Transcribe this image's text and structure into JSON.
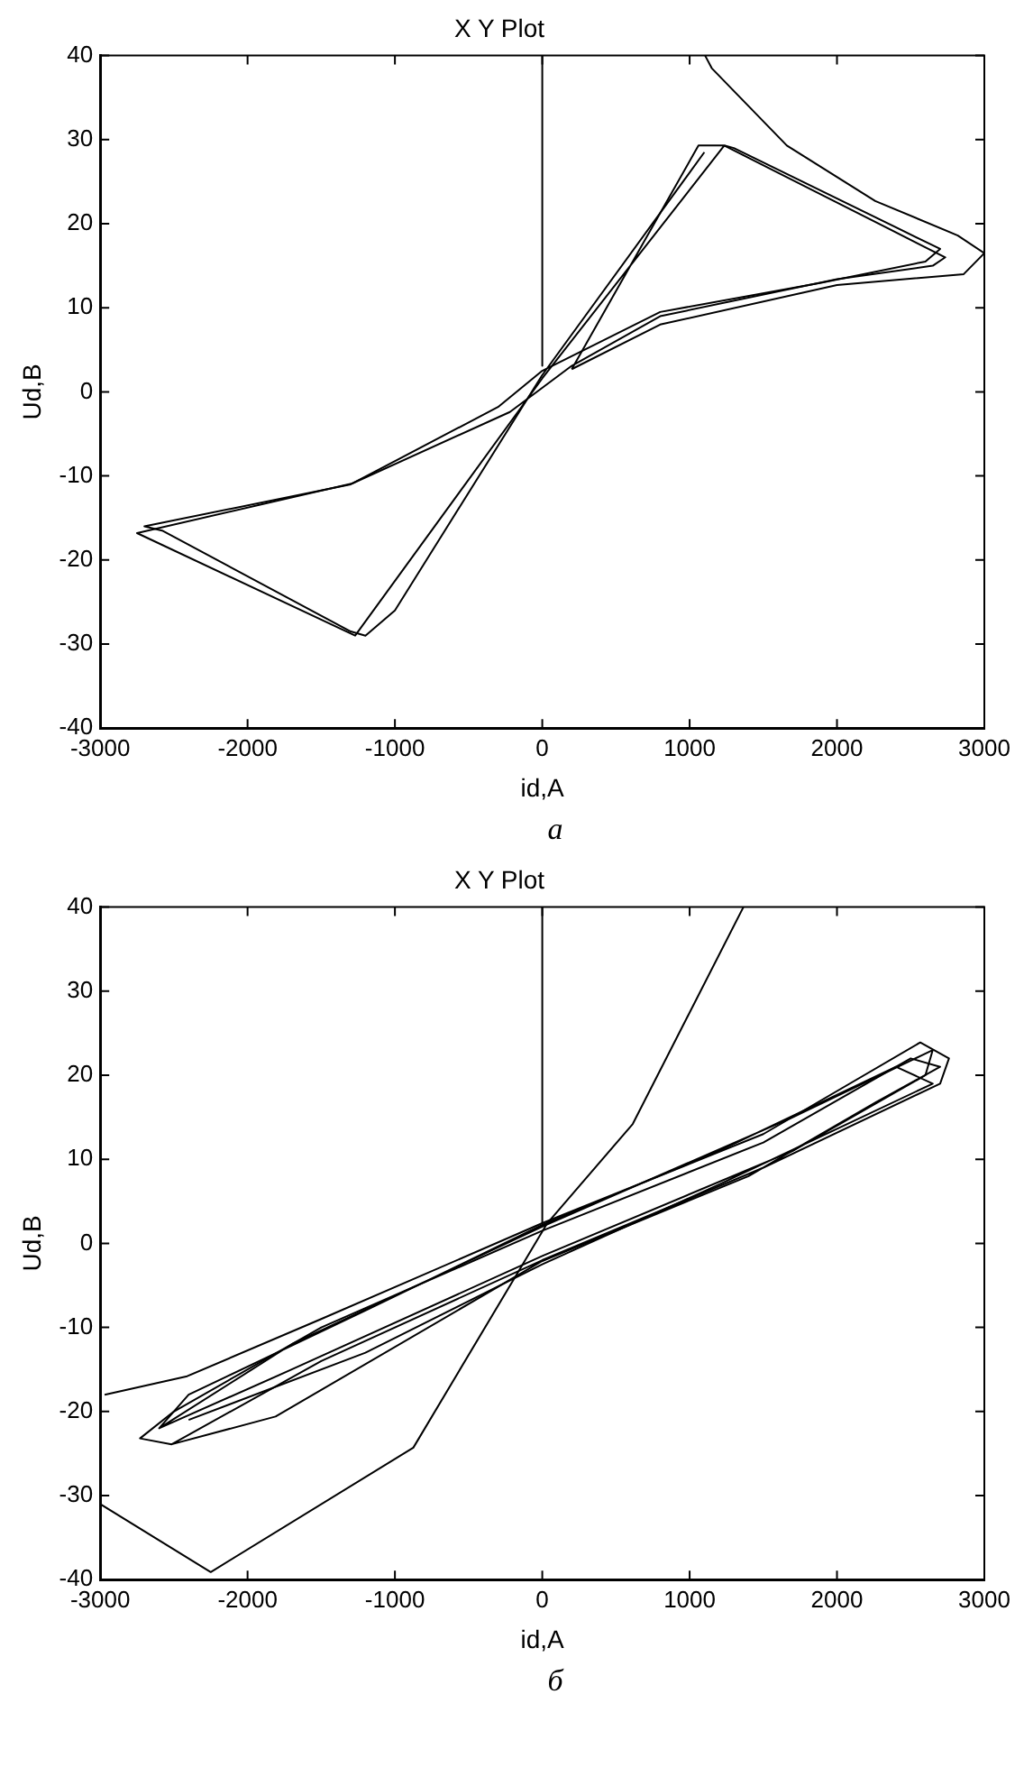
{
  "chart_data": [
    {
      "type": "line",
      "title": "X Y Plot",
      "xlabel": "id,A",
      "ylabel": "Ud,B",
      "xlim": [
        -3000,
        3000
      ],
      "ylim": [
        -40,
        40
      ],
      "xticks": [
        -3000,
        -2000,
        -1000,
        0,
        1000,
        2000,
        3000
      ],
      "yticks": [
        -40,
        -30,
        -20,
        -10,
        0,
        10,
        20,
        30,
        40
      ],
      "legend": false,
      "marker": "none",
      "line_style": "solid",
      "annotations": [
        "а"
      ],
      "series": [
        {
          "color": "#000000",
          "x": [
            0,
            0
          ],
          "values": [
            40,
            3.1
          ]
        },
        {
          "color": "#000000",
          "x": [
            1105,
            1150,
            1660,
            2260,
            2820,
            3000,
            2860,
            2000,
            800,
            200
          ],
          "values": [
            40,
            38.5,
            29.3,
            22.7,
            18.6,
            16.5,
            14,
            12.7,
            8,
            2.7
          ]
        },
        {
          "color": "#000000",
          "x": [
            200,
            1060,
            1235,
            2735,
            2650,
            2000,
            800,
            200,
            -220,
            -1290,
            -2750,
            -1270,
            0,
            1235
          ],
          "values": [
            2.7,
            29.3,
            29.3,
            16,
            15,
            13.4,
            9,
            3.1,
            -2.4,
            -10.9,
            -16.8,
            -29,
            1.6,
            29.3
          ]
        },
        {
          "color": "#000000",
          "x": [
            1235,
            1300,
            2700,
            2600,
            1900,
            800,
            0,
            -300,
            -1300,
            -2700,
            -2580,
            -1300,
            -1200,
            -1000,
            0,
            1100
          ],
          "values": [
            29.3,
            29,
            17,
            15.5,
            13,
            9.5,
            2.5,
            -1.8,
            -11,
            -16,
            -16.5,
            -28.5,
            -29,
            -26,
            2,
            28.5
          ]
        }
      ]
    },
    {
      "type": "line",
      "title": "X Y Plot",
      "xlabel": "id,A",
      "ylabel": "Ud,B",
      "xlim": [
        -3000,
        3000
      ],
      "ylim": [
        -40,
        40
      ],
      "xticks": [
        -3000,
        -2000,
        -1000,
        0,
        1000,
        2000,
        3000
      ],
      "yticks": [
        -40,
        -30,
        -20,
        -10,
        0,
        10,
        20,
        30,
        40
      ],
      "legend": false,
      "marker": "none",
      "line_style": "solid",
      "annotations": [
        "б"
      ],
      "series": [
        {
          "color": "#000000",
          "x": [
            0,
            0
          ],
          "values": [
            40,
            2.4
          ]
        },
        {
          "color": "#000000",
          "x": [
            1365,
            614,
            34,
            -875,
            -2250,
            -3000
          ],
          "values": [
            40,
            14.2,
            2.4,
            -24.3,
            -39.1,
            -31
          ]
        },
        {
          "color": "#000000",
          "x": [
            -2970,
            -2410,
            -1500,
            0,
            1500,
            2565,
            2760,
            2700,
            1500,
            0,
            -1500,
            -2515,
            -2730,
            -2500,
            -1500,
            0,
            1500,
            2500,
            2700,
            2265,
            1400,
            0,
            -1810,
            -2515
          ],
          "values": [
            -18,
            -15.8,
            -9,
            2.4,
            13,
            23.9,
            22,
            19,
            9,
            -2,
            -14,
            -23.9,
            -23.2,
            -20,
            -10,
            1.5,
            12,
            22,
            21,
            16.8,
            8,
            -2.1,
            -20.6,
            -23.9
          ]
        },
        {
          "color": "#000000",
          "x": [
            -2600,
            -1700,
            0,
            1700,
            2650,
            2600,
            1700,
            0,
            -1700,
            -2600,
            -2400,
            -1200,
            0,
            1200,
            2400,
            2650,
            1200,
            0,
            -1200,
            -2400
          ],
          "values": [
            -22,
            -12,
            2,
            15,
            23,
            20,
            11,
            -1.5,
            -15,
            -22,
            -18,
            -8,
            2.2,
            11,
            21,
            19,
            7,
            -2.5,
            -13,
            -21
          ]
        }
      ]
    }
  ]
}
